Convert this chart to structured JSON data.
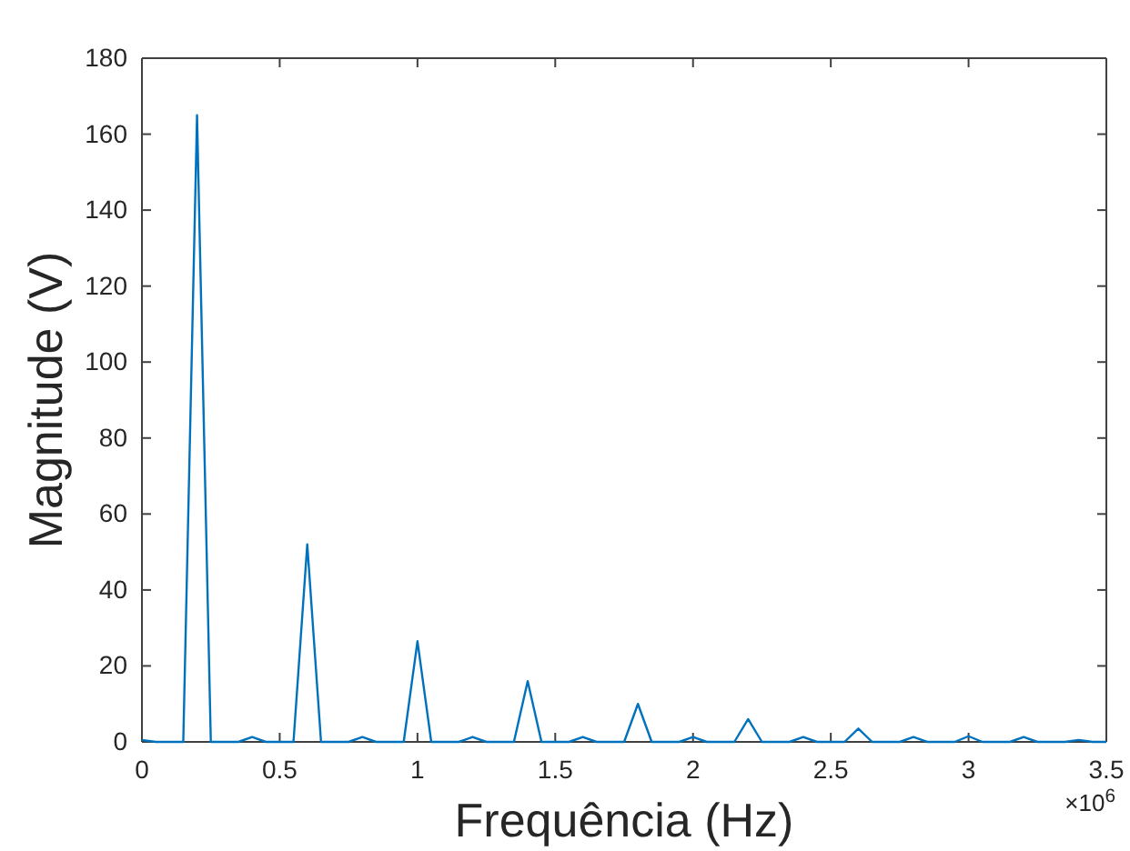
{
  "chart_data": {
    "type": "line",
    "xlabel": "Frequência (Hz)",
    "ylabel": "Magnitude (V)",
    "x": [
      0,
      0.05,
      0.1,
      0.15,
      0.2,
      0.25,
      0.3,
      0.35,
      0.4,
      0.45,
      0.5,
      0.55,
      0.6,
      0.65,
      0.7,
      0.75,
      0.8,
      0.85,
      0.9,
      0.95,
      1,
      1.05,
      1.1,
      1.15,
      1.2,
      1.25,
      1.3,
      1.35,
      1.4,
      1.45,
      1.5,
      1.55,
      1.6,
      1.65,
      1.7,
      1.75,
      1.8,
      1.85,
      1.9,
      1.95,
      2,
      2.05,
      2.1,
      2.15,
      2.2,
      2.25,
      2.3,
      2.35,
      2.4,
      2.45,
      2.5,
      2.55,
      2.6,
      2.65,
      2.7,
      2.75,
      2.8,
      2.85,
      2.9,
      2.95,
      3,
      3.05,
      3.1,
      3.15,
      3.2,
      3.25,
      3.3,
      3.35,
      3.4,
      3.45,
      3.5
    ],
    "series": [
      {
        "color": "#0072bd",
        "values": [
          0.5,
          0,
          0,
          0,
          165,
          0,
          0,
          0,
          1.3,
          0,
          0,
          0,
          52,
          0,
          0,
          0,
          1.3,
          0,
          0,
          0,
          26.5,
          0,
          0,
          0,
          1.3,
          0,
          0,
          0,
          16,
          0,
          0,
          0,
          1.3,
          0,
          0,
          0,
          10,
          0,
          0,
          0,
          1.3,
          0,
          0,
          0,
          6,
          0,
          0,
          0,
          1.3,
          0,
          0,
          0,
          3.5,
          0,
          0,
          0,
          1.3,
          0,
          0,
          0,
          1.5,
          0,
          0,
          0,
          1.3,
          0,
          0,
          0,
          0.5,
          0,
          0
        ]
      }
    ],
    "xlim": [
      0,
      3.5
    ],
    "xticks": [
      0,
      0.5,
      1,
      1.5,
      2,
      2.5,
      3,
      3.5
    ],
    "ylim": [
      0,
      180
    ],
    "yticks": [
      0,
      20,
      40,
      60,
      80,
      100,
      120,
      140,
      160,
      180
    ],
    "annotations": [
      "×10$^{6}$"
    ]
  }
}
